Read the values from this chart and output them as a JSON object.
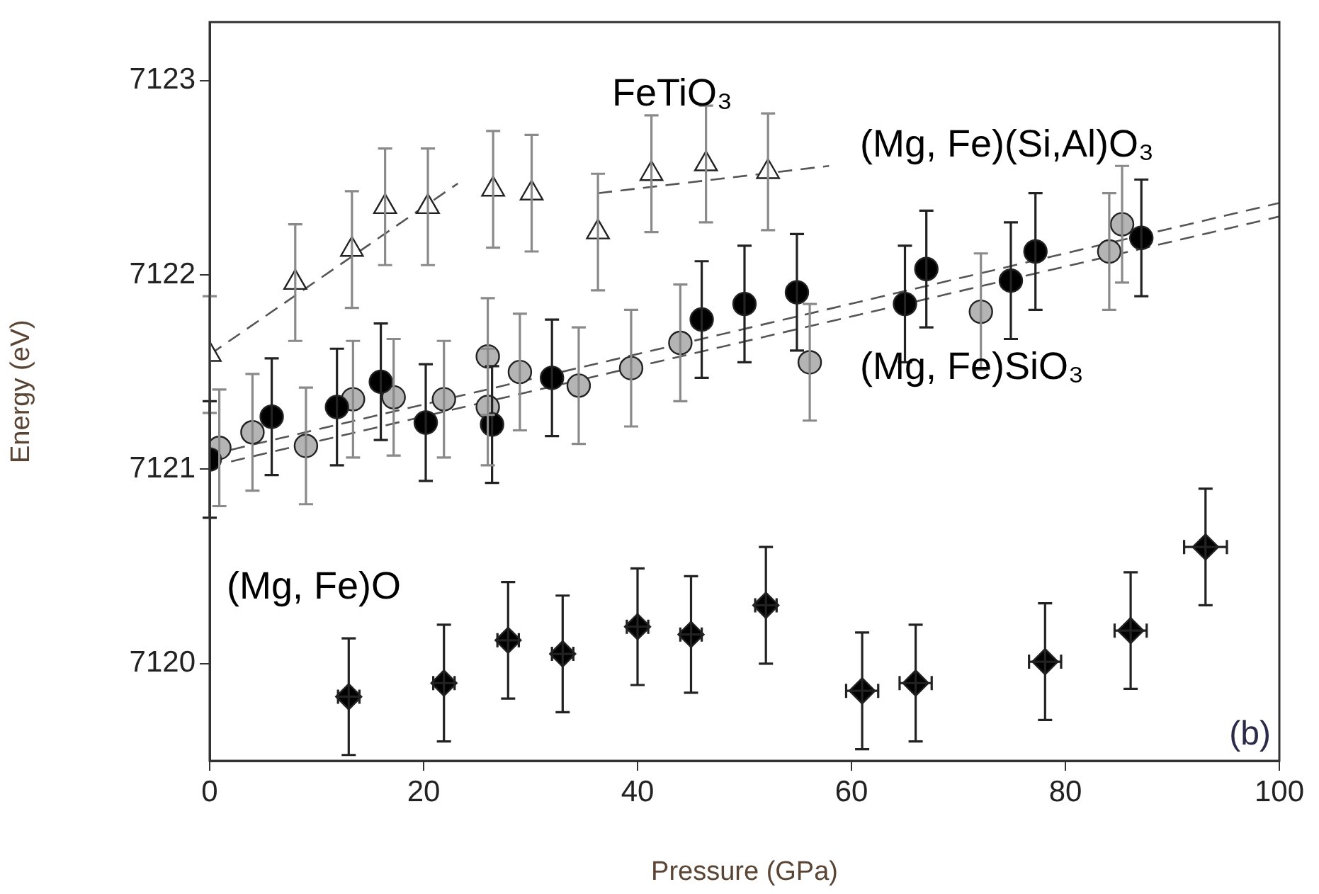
{
  "chart_data": {
    "type": "scatter",
    "xlabel": "Pressure (GPa)",
    "ylabel": "Energy (eV)",
    "xlim": [
      0,
      100
    ],
    "xticks": [
      0,
      20,
      40,
      60,
      80,
      100
    ],
    "ylim": [
      7119.5,
      7123.3
    ],
    "yticks": [
      7120,
      7121,
      7122,
      7123
    ],
    "grid": false,
    "legend": false,
    "series": [
      {
        "type": "scatter",
        "color": "#ffffff",
        "marker": "triangle",
        "x": [
          0,
          8.0,
          13.3,
          16.4,
          20.4,
          26.5,
          30.1,
          36.3,
          41.3,
          46.4,
          52.2
        ],
        "values": [
          7121.59,
          7121.96,
          7122.13,
          7122.35,
          7122.35,
          7122.44,
          7122.42,
          7122.22,
          7122.52,
          7122.57,
          7122.53
        ],
        "errors": [
          0.3,
          0.3,
          0.3,
          0.3,
          0.3,
          0.3,
          0.3,
          0.3,
          0.3,
          0.3,
          0.3
        ]
      },
      {
        "type": "line",
        "color": "#555555",
        "marker": "none",
        "line_style": "dashed",
        "x": [
          0,
          23.2
        ],
        "values": [
          7121.59,
          7122.47
        ]
      },
      {
        "type": "line",
        "color": "#555555",
        "marker": "none",
        "line_style": "dashed",
        "x": [
          36.3,
          57.9
        ],
        "values": [
          7122.42,
          7122.56
        ]
      },
      {
        "type": "scatter",
        "color": "#000000",
        "marker": "circle",
        "x": [
          0,
          5.8,
          11.9,
          16.0,
          20.2,
          26.4,
          32.0,
          46.0,
          50.0,
          54.9,
          65.0,
          67.0,
          74.9,
          77.2,
          87.1
        ],
        "values": [
          7121.05,
          7121.27,
          7121.32,
          7121.45,
          7121.24,
          7121.23,
          7121.47,
          7121.77,
          7121.85,
          7121.91,
          7121.85,
          7122.03,
          7121.97,
          7122.12,
          7122.19
        ],
        "errors": [
          0.3,
          0.3,
          0.3,
          0.3,
          0.3,
          0.3,
          0.3,
          0.3,
          0.3,
          0.3,
          0.3,
          0.3,
          0.3,
          0.3,
          0.3
        ]
      },
      {
        "type": "scatter",
        "color": "#b4b4b4",
        "marker": "circle",
        "x": [
          0.9,
          4.0,
          9.0,
          13.4,
          17.2,
          21.9,
          26.0,
          26.0,
          29.0,
          34.5,
          39.4,
          44.0,
          56.1,
          72.1,
          84.1,
          85.3
        ],
        "values": [
          7121.11,
          7121.19,
          7121.12,
          7121.36,
          7121.37,
          7121.36,
          7121.58,
          7121.32,
          7121.5,
          7121.43,
          7121.52,
          7121.65,
          7121.55,
          7121.81,
          7122.12,
          7122.26
        ],
        "errors": [
          0.3,
          0.3,
          0.3,
          0.3,
          0.3,
          0.3,
          0.3,
          0.3,
          0.3,
          0.3,
          0.3,
          0.3,
          0.3,
          0.3,
          0.3,
          0.3
        ]
      },
      {
        "type": "line",
        "color": "#555555",
        "marker": "none",
        "line_style": "dashed",
        "x": [
          2,
          100
        ],
        "values": [
          7121.1,
          7122.37
        ]
      },
      {
        "type": "line",
        "color": "#555555",
        "marker": "none",
        "line_style": "dashed",
        "x": [
          2,
          100
        ],
        "values": [
          7121.04,
          7122.3
        ]
      },
      {
        "type": "scatter",
        "color": "#000000",
        "marker": "diamond",
        "x": [
          13.0,
          21.9,
          27.9,
          33.0,
          40.0,
          45.0,
          52.0,
          61.0,
          66.0,
          78.1,
          86.1,
          93.1
        ],
        "values": [
          7119.83,
          7119.9,
          7120.12,
          7120.05,
          7120.19,
          7120.15,
          7120.3,
          7119.86,
          7119.9,
          7120.01,
          7120.17,
          7120.6
        ],
        "errors": [
          0.3,
          0.3,
          0.3,
          0.3,
          0.3,
          0.3,
          0.3,
          0.3,
          0.3,
          0.3,
          0.3,
          0.3
        ],
        "xerrors": [
          1,
          1,
          1,
          1,
          1,
          1,
          1,
          1.5,
          1.5,
          1.5,
          1.5,
          2
        ]
      }
    ],
    "annotations": [
      "FeTiO₃",
      "(Mg, Fe)(Si,Al)O₃",
      "(Mg, Fe)SiO₃",
      "(Mg, Fe)O",
      "(b)"
    ]
  }
}
